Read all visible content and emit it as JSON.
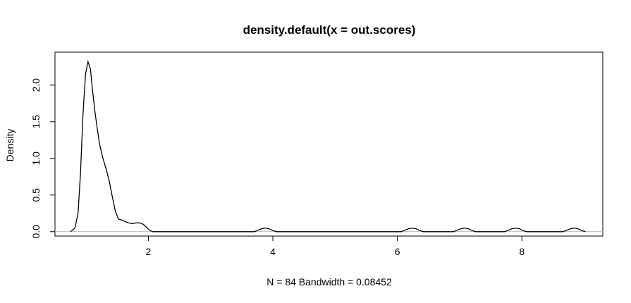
{
  "chart_data": {
    "type": "line",
    "title": "density.default(x = out.scores)",
    "xlabel": "N = 84   Bandwidth = 0.08452",
    "ylabel": "Density",
    "xlim": [
      0.5,
      9.3
    ],
    "ylim": [
      -0.06,
      2.45
    ],
    "x_ticks": [
      "2",
      "4",
      "6",
      "8"
    ],
    "y_ticks": [
      "0.0",
      "0.5",
      "1.0",
      "1.5",
      "2.0"
    ],
    "grid": false,
    "baseline_y": 0,
    "baseline_color": "#b4b4b4",
    "line_color": "#000000",
    "series": [
      {
        "x": [
          0.75,
          0.82,
          0.87,
          0.91,
          0.95,
          0.99,
          1.03,
          1.07,
          1.1,
          1.14,
          1.18,
          1.22,
          1.27,
          1.32,
          1.37,
          1.42,
          1.47,
          1.52,
          1.57,
          1.62,
          1.68,
          1.74,
          1.8,
          1.86,
          1.92,
          1.97,
          2.02,
          2.07,
          2.12,
          2.18,
          2.25,
          3.7,
          3.76,
          3.82,
          3.88,
          3.94,
          4.0,
          4.06,
          6.06,
          6.12,
          6.18,
          6.24,
          6.3,
          6.36,
          6.42,
          6.9,
          6.96,
          7.02,
          7.08,
          7.14,
          7.2,
          7.26,
          7.72,
          7.78,
          7.84,
          7.9,
          7.96,
          8.02,
          8.08,
          8.66,
          8.72,
          8.78,
          8.84,
          8.9,
          8.96,
          9.02
        ],
        "y": [
          0.0,
          0.05,
          0.25,
          0.8,
          1.6,
          2.15,
          2.32,
          2.22,
          1.95,
          1.65,
          1.4,
          1.18,
          1.0,
          0.86,
          0.7,
          0.48,
          0.28,
          0.17,
          0.16,
          0.14,
          0.12,
          0.11,
          0.12,
          0.12,
          0.1,
          0.06,
          0.02,
          0.0,
          0.0,
          0.0,
          0.0,
          0.0,
          0.02,
          0.04,
          0.05,
          0.04,
          0.015,
          0.0,
          0.0,
          0.02,
          0.04,
          0.05,
          0.04,
          0.015,
          0.0,
          0.0,
          0.02,
          0.04,
          0.05,
          0.04,
          0.015,
          0.0,
          0.0,
          0.02,
          0.04,
          0.05,
          0.04,
          0.015,
          0.0,
          0.0,
          0.02,
          0.04,
          0.05,
          0.04,
          0.015,
          0.0
        ]
      }
    ]
  }
}
